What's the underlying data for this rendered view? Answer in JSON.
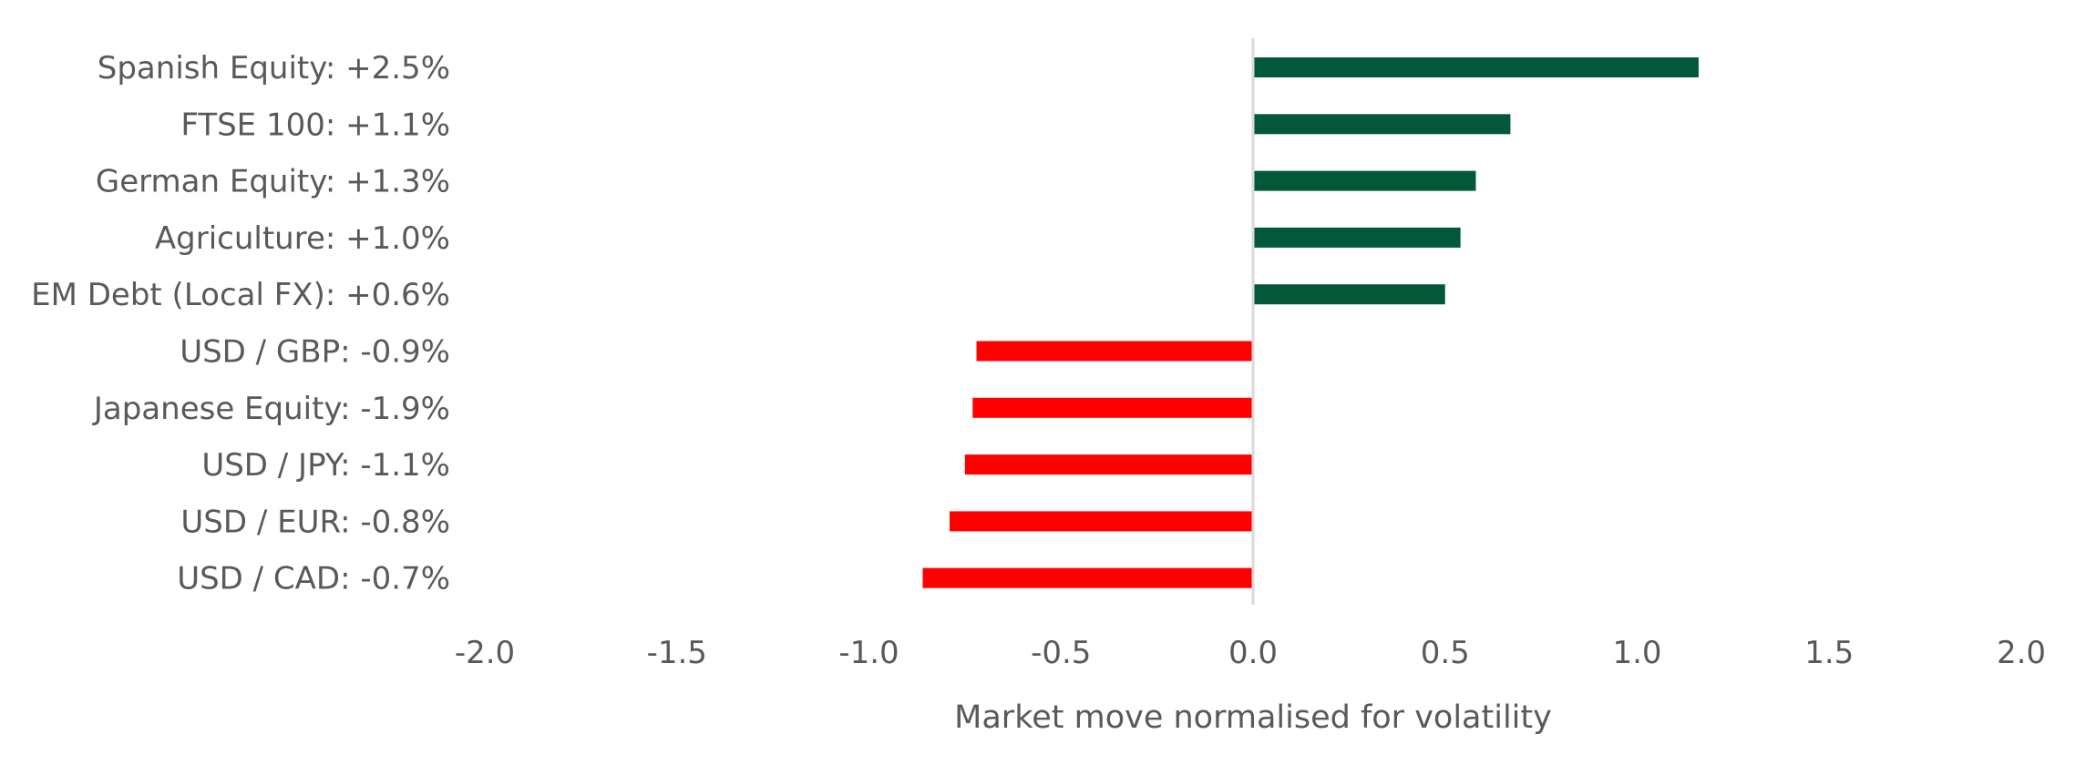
{
  "chart_data": {
    "type": "bar",
    "orientation": "horizontal",
    "title": "",
    "xlabel": "Market move normalised for volatility",
    "ylabel": "",
    "xlim": [
      -2.0,
      2.0
    ],
    "x_ticks": [
      "-2.0",
      "-1.5",
      "-1.0",
      "-0.5",
      "0.0",
      "0.5",
      "1.0",
      "1.5",
      "2.0"
    ],
    "grid": false,
    "legend": "none",
    "categories": [
      "Spanish Equity: +2.5%",
      "FTSE 100: +1.1%",
      "German Equity: +1.3%",
      "Agriculture: +1.0%",
      "EM Debt (Local FX): +0.6%",
      "USD / GBP: -0.9%",
      "Japanese Equity: -1.9%",
      "USD / JPY: -1.1%",
      "USD / EUR: -0.8%",
      "USD / CAD: -0.7%"
    ],
    "values": [
      1.16,
      0.67,
      0.58,
      0.54,
      0.5,
      -0.72,
      -0.73,
      -0.75,
      -0.79,
      -0.86
    ],
    "colors": {
      "positive": "#04583a",
      "negative": "#ff0000",
      "zero_line": "#d9d9d9"
    }
  }
}
